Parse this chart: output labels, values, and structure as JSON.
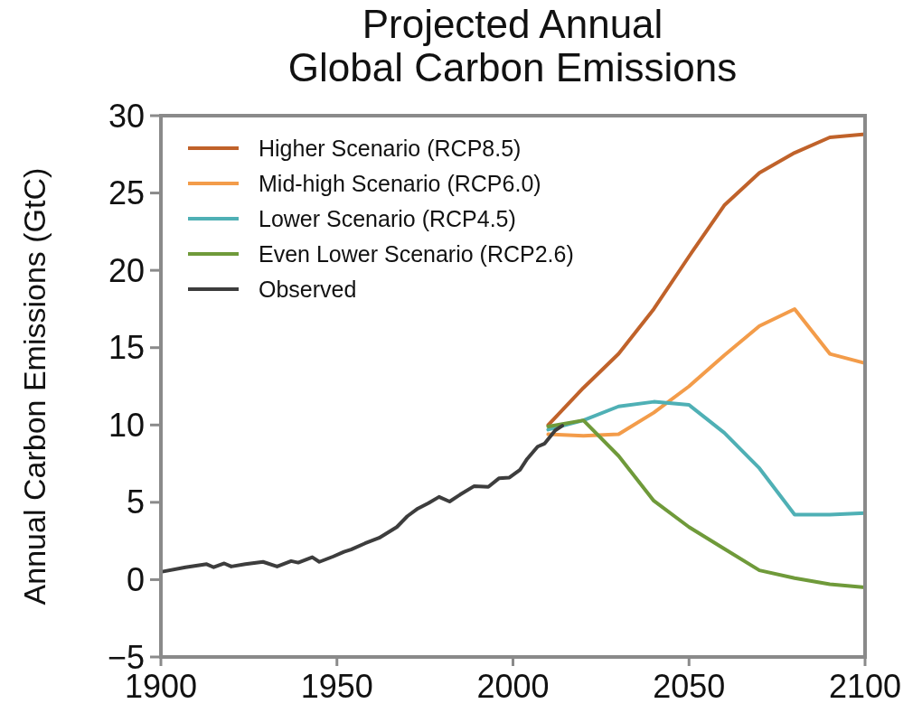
{
  "chart_data": {
    "type": "line",
    "title": "Projected Annual\nGlobal Carbon Emissions",
    "ylabel": "Annual Carbon Emissions (GtC)",
    "xlim": [
      1900,
      2100
    ],
    "xticks": [
      1900,
      1950,
      2000,
      2050,
      2100
    ],
    "ylim": [
      -5,
      30
    ],
    "yticks": [
      -5,
      0,
      5,
      10,
      15,
      20,
      25,
      30
    ],
    "grid": false,
    "legend": "top left",
    "line_style": "solid",
    "marker": "none",
    "series": [
      {
        "name": "Higher Scenario (RCP8.5)",
        "color": "#c0622a",
        "x": [
          2010,
          2020,
          2030,
          2040,
          2050,
          2060,
          2070,
          2080,
          2090,
          2100
        ],
        "values": [
          10.0,
          12.4,
          14.6,
          17.5,
          20.9,
          24.2,
          26.3,
          27.6,
          28.6,
          28.8
        ]
      },
      {
        "name": "Mid-high Scenario (RCP6.0)",
        "color": "#f39c4a",
        "x": [
          2010,
          2020,
          2030,
          2040,
          2050,
          2060,
          2070,
          2080,
          2090,
          2100
        ],
        "values": [
          9.4,
          9.3,
          9.4,
          10.8,
          12.5,
          14.5,
          16.4,
          17.5,
          14.6,
          14.0
        ]
      },
      {
        "name": "Lower Scenario (RCP4.5)",
        "color": "#4fb0b5",
        "x": [
          2010,
          2020,
          2030,
          2040,
          2050,
          2060,
          2070,
          2080,
          2090,
          2100
        ],
        "values": [
          9.7,
          10.3,
          11.2,
          11.5,
          11.3,
          9.5,
          7.2,
          4.2,
          4.2,
          4.3
        ]
      },
      {
        "name": "Even Lower Scenario (RCP2.6)",
        "color": "#6f9a3a",
        "x": [
          2010,
          2020,
          2030,
          2040,
          2050,
          2060,
          2070,
          2080,
          2090,
          2100
        ],
        "values": [
          9.9,
          10.3,
          8.0,
          5.1,
          3.4,
          2.0,
          0.6,
          0.1,
          -0.3,
          -0.5
        ]
      },
      {
        "name": "Observed",
        "color": "#3d3d3d",
        "x": [
          1900,
          1907,
          1913,
          1915,
          1918,
          1920,
          1924,
          1929,
          1933,
          1937,
          1939,
          1943,
          1945,
          1949,
          1952,
          1954,
          1958,
          1962,
          1967,
          1970,
          1973,
          1976,
          1979,
          1982,
          1985,
          1989,
          1993,
          1996,
          1999,
          2002,
          2004,
          2007,
          2009,
          2012,
          2014
        ],
        "values": [
          0.5,
          0.8,
          1.0,
          0.8,
          1.05,
          0.85,
          1.0,
          1.15,
          0.85,
          1.2,
          1.1,
          1.45,
          1.15,
          1.5,
          1.8,
          1.95,
          2.35,
          2.7,
          3.4,
          4.1,
          4.6,
          4.95,
          5.35,
          5.05,
          5.5,
          6.05,
          6.0,
          6.55,
          6.6,
          7.1,
          7.8,
          8.6,
          8.8,
          9.65,
          9.95
        ]
      }
    ]
  }
}
